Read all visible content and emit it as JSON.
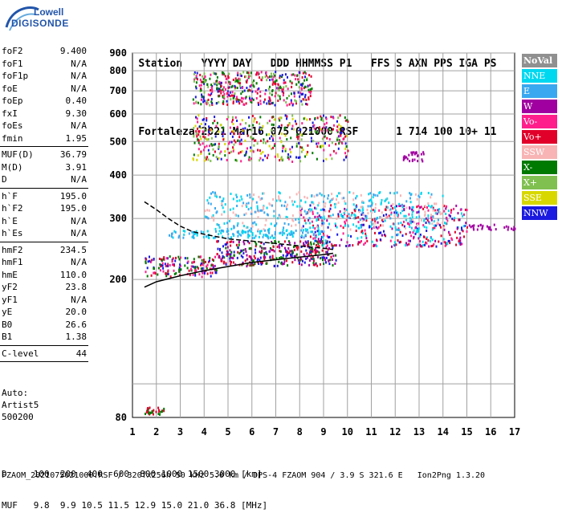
{
  "logo": {
    "line1": "Lowell",
    "line2": "DIGISONDE"
  },
  "header": {
    "row1": [
      "Station",
      "YYYY DAY",
      "DDD HHMMSS P1",
      "FFS S AXN PPS IGA PS"
    ],
    "row2": [
      "Fortaleza",
      "2021 Mar16",
      "075 021000 RSF",
      "1 714 100 10+ 11"
    ]
  },
  "params": [
    {
      "name": "foF2",
      "value": "9.400"
    },
    {
      "name": "foF1",
      "value": "N/A"
    },
    {
      "name": "foF1p",
      "value": "N/A"
    },
    {
      "name": "foE",
      "value": "N/A"
    },
    {
      "name": "foEp",
      "value": "0.40"
    },
    {
      "name": "fxI",
      "value": "9.30"
    },
    {
      "name": "foEs",
      "value": "N/A"
    },
    {
      "name": "fmin",
      "value": "1.95"
    },
    {
      "sep": true
    },
    {
      "name": "MUF(D)",
      "value": "36.79"
    },
    {
      "name": "M(D)",
      "value": "3.91"
    },
    {
      "name": "D",
      "value": "N/A"
    },
    {
      "sep": true
    },
    {
      "name": "h`F",
      "value": "195.0"
    },
    {
      "name": "h`F2",
      "value": "195.0"
    },
    {
      "name": "h`E",
      "value": "N/A"
    },
    {
      "name": "h`Es",
      "value": "N/A"
    },
    {
      "sep": true
    },
    {
      "name": "hmF2",
      "value": "234.5"
    },
    {
      "name": "hmF1",
      "value": "N/A"
    },
    {
      "name": "hmE",
      "value": "110.0"
    },
    {
      "name": "yF2",
      "value": "23.8"
    },
    {
      "name": "yF1",
      "value": "N/A"
    },
    {
      "name": "yE",
      "value": "20.0"
    },
    {
      "name": "B0",
      "value": "26.6"
    },
    {
      "name": "B1",
      "value": "1.38"
    },
    {
      "sep": true
    },
    {
      "name": "C-level",
      "value": "44"
    },
    {
      "sep": true
    }
  ],
  "auto": {
    "line1": "Auto:",
    "line2": "Artist5",
    "line3": "500200"
  },
  "legend": [
    {
      "label": "NoVal",
      "color": "#909090"
    },
    {
      "label": "NNE",
      "color": "#00d8f0"
    },
    {
      "label": "E",
      "color": "#3aa8f0"
    },
    {
      "label": "W",
      "color": "#a000a0"
    },
    {
      "label": "Vo-",
      "color": "#ff1e8c"
    },
    {
      "label": "Vo+",
      "color": "#e0002a"
    },
    {
      "label": "SSW",
      "color": "#f8b4b4"
    },
    {
      "label": "X-",
      "color": "#007a00"
    },
    {
      "label": "X+",
      "color": "#80c050"
    },
    {
      "label": "SSE",
      "color": "#d8d800"
    },
    {
      "label": "NNW",
      "color": "#1a1ae0"
    }
  ],
  "chart_data": {
    "type": "scatter",
    "xlabel": "",
    "ylabel": "",
    "xlim": [
      1,
      17
    ],
    "ylim": [
      80,
      900
    ],
    "y_scale": "log",
    "x_ticks": [
      "1",
      "2",
      "3",
      "4",
      "5",
      "6",
      "7",
      "8",
      "9",
      "10",
      "11",
      "12",
      "13",
      "14",
      "15",
      "16",
      "17"
    ],
    "y_ticks": [
      100,
      200,
      300,
      400,
      500,
      600,
      700,
      800,
      900
    ],
    "y_tick_labels": [
      "",
      "200",
      "300",
      "400",
      "500",
      "600",
      "700",
      "800",
      "900"
    ],
    "y_extra_labels": [
      {
        "value": 80,
        "label": "80"
      }
    ],
    "grid": true,
    "traces": [
      {
        "name": "O-trace",
        "points": [
          [
            1.5,
            190
          ],
          [
            2,
            197
          ],
          [
            3,
            205
          ],
          [
            4,
            212
          ],
          [
            5,
            218
          ],
          [
            6,
            224
          ],
          [
            7,
            228
          ],
          [
            8,
            232
          ],
          [
            9,
            236
          ],
          [
            9.4,
            238
          ]
        ]
      },
      {
        "name": "X-trace",
        "points": [
          [
            1.5,
            335
          ],
          [
            2,
            318
          ],
          [
            2.5,
            300
          ],
          [
            3,
            285
          ],
          [
            3.5,
            275
          ],
          [
            4,
            270
          ],
          [
            5,
            262
          ],
          [
            6,
            258
          ],
          [
            7,
            254
          ],
          [
            8,
            250
          ],
          [
            9,
            246
          ],
          [
            9.4,
            244
          ]
        ]
      }
    ],
    "echo_regions": [
      {
        "x": [
          1.5,
          4.5
        ],
        "y": [
          205,
          235
        ],
        "colors": [
          "#e0002a",
          "#ff1e8c",
          "#007a00",
          "#1a1ae0"
        ]
      },
      {
        "x": [
          4.5,
          9.5
        ],
        "y": [
          220,
          260
        ],
        "colors": [
          "#e0002a",
          "#1a1ae0",
          "#007a00",
          "#a000a0"
        ]
      },
      {
        "x": [
          8,
          15
        ],
        "y": [
          250,
          330
        ],
        "colors": [
          "#e0002a",
          "#1a1ae0",
          "#ff1e8c",
          "#a000a0",
          "#00d8f0"
        ]
      },
      {
        "x": [
          2.5,
          9
        ],
        "y": [
          265,
          280
        ],
        "colors": [
          "#3aa8f0",
          "#00d8f0"
        ]
      },
      {
        "x": [
          4,
          14
        ],
        "y": [
          280,
          360
        ],
        "colors": [
          "#00d8f0",
          "#3aa8f0",
          "#f8b4b4"
        ]
      },
      {
        "x": [
          3.5,
          10
        ],
        "y": [
          440,
          600
        ],
        "colors": [
          "#ff1e8c",
          "#007a00",
          "#80c050",
          "#d8d800",
          "#1a1ae0",
          "#e0002a"
        ]
      },
      {
        "x": [
          3.5,
          8.5
        ],
        "y": [
          640,
          800
        ],
        "colors": [
          "#ff1e8c",
          "#007a00",
          "#80c050",
          "#1a1ae0",
          "#e0002a"
        ]
      },
      {
        "x": [
          12.3,
          13.2
        ],
        "y": [
          440,
          470
        ],
        "colors": [
          "#a000a0"
        ]
      },
      {
        "x": [
          15,
          17
        ],
        "y": [
          280,
          290
        ],
        "colors": [
          "#a000a0"
        ]
      },
      {
        "x": [
          1.5,
          2.3
        ],
        "y": [
          82,
          86
        ],
        "colors": [
          "#e0002a",
          "#007a00"
        ]
      }
    ]
  },
  "footer": {
    "row1_label": "D",
    "row1_values": "100  200  400  600  800 1000 1500 3000 [km]",
    "row2_label": "MUF",
    "row2_values": "9.8  9.9 10.5 11.5 12.9 15.0 21.0 36.8 [MHz]",
    "row3": "FZAOM_2021075021000.RSF / 320fx256h 50 kHz 5.0 km / DPS-4 FZAOM 904 / 3.9 S 321.6 E   Ion2Png 1.3.20"
  }
}
